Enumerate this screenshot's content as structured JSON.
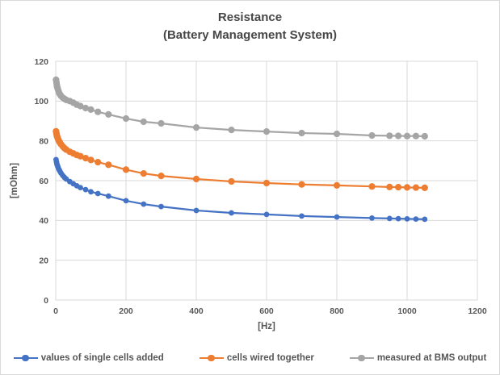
{
  "chart_data": {
    "type": "line",
    "title": "Resistance",
    "subtitle": "(Battery Management System)",
    "xlabel": "[Hz]",
    "ylabel": "[mOhm]",
    "xlim": [
      0,
      1200
    ],
    "ylim": [
      0,
      120
    ],
    "x_ticks": [
      0,
      200,
      400,
      600,
      800,
      1000,
      1200
    ],
    "y_ticks": [
      0,
      20,
      40,
      60,
      80,
      100,
      120
    ],
    "grid": true,
    "legend_position": "bottom",
    "x": [
      1,
      2,
      3,
      4,
      5,
      6,
      8,
      10,
      12,
      15,
      20,
      25,
      30,
      40,
      50,
      60,
      70,
      85,
      100,
      120,
      150,
      200,
      250,
      300,
      400,
      500,
      600,
      700,
      800,
      900,
      950,
      975,
      1000,
      1025,
      1050
    ],
    "series": [
      {
        "name": "values of single cells added",
        "color": "#4472C4",
        "marker_radius": 3.4,
        "values": [
          70.6,
          69.5,
          68.7,
          68.0,
          67.5,
          67.0,
          66.1,
          65.4,
          64.7,
          63.8,
          62.6,
          61.6,
          60.8,
          59.5,
          58.4,
          57.4,
          56.5,
          55.5,
          54.4,
          53.5,
          52.2,
          49.9,
          48.2,
          47.0,
          45.0,
          43.8,
          43.0,
          42.2,
          41.7,
          41.2,
          41.0,
          40.9,
          40.8,
          40.7,
          40.6
        ]
      },
      {
        "name": "cells wired together",
        "color": "#ED7D31",
        "marker_radius": 4.1,
        "values": [
          84.8,
          83.7,
          82.9,
          82.2,
          81.7,
          81.2,
          80.4,
          79.7,
          79.1,
          78.3,
          77.2,
          76.3,
          75.6,
          74.5,
          73.7,
          72.9,
          72.3,
          71.3,
          70.4,
          69.3,
          68.0,
          65.5,
          63.6,
          62.4,
          60.8,
          59.6,
          58.8,
          58.1,
          57.6,
          57.1,
          56.8,
          56.7,
          56.6,
          56.5,
          56.4
        ]
      },
      {
        "name": "measured at BMS output",
        "color": "#A5A5A5",
        "marker_radius": 4.1,
        "values": [
          110.7,
          109.4,
          108.2,
          107.3,
          106.6,
          106.0,
          104.9,
          104.0,
          103.4,
          102.6,
          101.7,
          101.1,
          100.6,
          100.0,
          99.2,
          98.2,
          97.5,
          96.5,
          95.7,
          94.6,
          93.3,
          91.2,
          89.6,
          88.8,
          86.7,
          85.5,
          84.7,
          83.9,
          83.5,
          82.7,
          82.6,
          82.5,
          82.4,
          82.4,
          82.3
        ]
      }
    ],
    "grid_color": "#D9D9D9",
    "axis_text_color": "#595959",
    "title_color": "#474747"
  }
}
